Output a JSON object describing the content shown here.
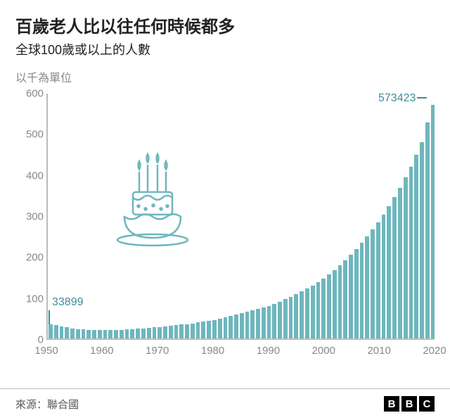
{
  "title": "百歲老人比以往任何時候都多",
  "subtitle": "全球100歲或以上的人數",
  "unit_label": "以千為單位",
  "source_label": "來源：聯合國",
  "logo_letters": [
    "B",
    "B",
    "C"
  ],
  "chart": {
    "type": "bar",
    "bar_color": "#6db7bd",
    "grid_color": "#bbbbbb",
    "text_color": "#888888",
    "accent_color": "#3c8f99",
    "background_color": "#ffffff",
    "ylim": [
      0,
      600
    ],
    "yticks": [
      0,
      100,
      200,
      300,
      400,
      500,
      600
    ],
    "xlim": [
      1950,
      2020
    ],
    "xticks": [
      1950,
      1960,
      1970,
      1980,
      1990,
      2000,
      2010,
      2020
    ],
    "annotations": [
      {
        "year": 1950,
        "value": 33899,
        "label": "33899"
      },
      {
        "year": 2020,
        "value": 573423,
        "label": "573423"
      }
    ],
    "years": [
      1950,
      1951,
      1952,
      1953,
      1954,
      1955,
      1956,
      1957,
      1958,
      1959,
      1960,
      1961,
      1962,
      1963,
      1964,
      1965,
      1966,
      1967,
      1968,
      1969,
      1970,
      1971,
      1972,
      1973,
      1974,
      1975,
      1976,
      1977,
      1978,
      1979,
      1980,
      1981,
      1982,
      1983,
      1984,
      1985,
      1986,
      1987,
      1988,
      1989,
      1990,
      1991,
      1992,
      1993,
      1994,
      1995,
      1996,
      1997,
      1998,
      1999,
      2000,
      2001,
      2002,
      2003,
      2004,
      2005,
      2006,
      2007,
      2008,
      2009,
      2010,
      2011,
      2012,
      2013,
      2014,
      2015,
      2016,
      2017,
      2018,
      2019,
      2020
    ],
    "values": [
      34,
      32,
      29,
      27,
      25,
      23,
      22,
      21,
      20,
      20,
      20,
      20,
      20,
      21,
      22,
      23,
      24,
      25,
      26,
      27,
      28,
      29,
      31,
      32,
      34,
      35,
      37,
      39,
      41,
      43,
      45,
      48,
      51,
      55,
      58,
      62,
      65,
      69,
      72,
      76,
      80,
      85,
      90,
      96,
      102,
      108,
      115,
      122,
      130,
      138,
      147,
      157,
      168,
      180,
      192,
      205,
      219,
      234,
      250,
      267,
      285,
      304,
      324,
      346,
      369,
      394,
      421,
      450,
      481,
      530,
      573
    ]
  }
}
